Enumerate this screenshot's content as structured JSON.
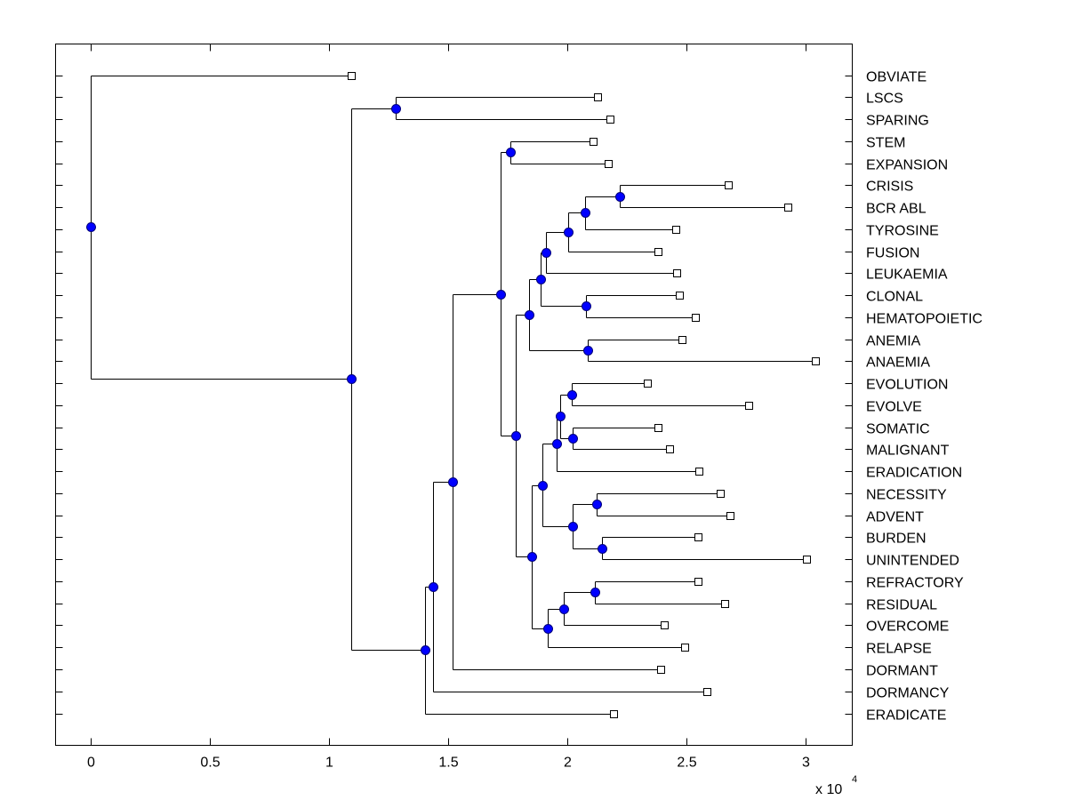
{
  "chart_data": {
    "type": "dendrogram",
    "title": "",
    "xlabel": "",
    "ylabel": "",
    "x_multiplier_label": "x 10",
    "x_multiplier_exponent": "4",
    "xlim": [
      -0.15,
      3.2
    ],
    "xticks": [
      0,
      0.5,
      1,
      1.5,
      2,
      2.5,
      3
    ],
    "xtick_labels": [
      "0",
      "0.5",
      "1",
      "1.5",
      "2",
      "2.5",
      "3"
    ],
    "grid": false,
    "colors": {
      "node": "#0000ff",
      "leaf": "#ffffff",
      "line": "#000000"
    },
    "leaves": [
      {
        "label": "OBVIATE",
        "x": 1.093
      },
      {
        "label": "LSCS",
        "x": 2.127
      },
      {
        "label": "SPARING",
        "x": 2.179
      },
      {
        "label": "STEM",
        "x": 2.108
      },
      {
        "label": "EXPANSION",
        "x": 2.172
      },
      {
        "label": "CRISIS",
        "x": 2.675
      },
      {
        "label": "BCR ABL",
        "x": 2.925
      },
      {
        "label": "TYROSINE",
        "x": 2.455
      },
      {
        "label": "FUSION",
        "x": 2.381
      },
      {
        "label": "LEUKAEMIA",
        "x": 2.459
      },
      {
        "label": "CLONAL",
        "x": 2.47
      },
      {
        "label": "HEMATOPOIETIC",
        "x": 2.537
      },
      {
        "label": "ANEMIA",
        "x": 2.481
      },
      {
        "label": "ANAEMIA",
        "x": 3.041
      },
      {
        "label": "EVOLUTION",
        "x": 2.336
      },
      {
        "label": "EVOLVE",
        "x": 2.761
      },
      {
        "label": "SOMATIC",
        "x": 2.381
      },
      {
        "label": "MALIGNANT",
        "x": 2.429
      },
      {
        "label": "ERADICATION",
        "x": 2.552
      },
      {
        "label": "NECESSITY",
        "x": 2.642
      },
      {
        "label": "ADVENT",
        "x": 2.683
      },
      {
        "label": "BURDEN",
        "x": 2.549
      },
      {
        "label": "UNINTENDED",
        "x": 3.004
      },
      {
        "label": "REFRACTORY",
        "x": 2.549
      },
      {
        "label": "RESIDUAL",
        "x": 2.66
      },
      {
        "label": "OVERCOME",
        "x": 2.407
      },
      {
        "label": "RELAPSE",
        "x": 2.493
      },
      {
        "label": "DORMANT",
        "x": 2.392
      },
      {
        "label": "DORMANCY",
        "x": 2.586
      },
      {
        "label": "ERADICATE",
        "x": 2.194
      }
    ],
    "nodes": {
      "root": {
        "x": 0.0,
        "children": [
          "L0",
          "B"
        ]
      },
      "B": {
        "x": 1.093,
        "children": [
          "C",
          "D"
        ]
      },
      "C": {
        "x": 1.28,
        "children": [
          "L1",
          "L2"
        ]
      },
      "D": {
        "x": 1.403,
        "children": [
          "E",
          "L29"
        ]
      },
      "E": {
        "x": 1.437,
        "children": [
          "F",
          "L28"
        ]
      },
      "F": {
        "x": 1.519,
        "children": [
          "G",
          "L27"
        ]
      },
      "G": {
        "x": 1.72,
        "children": [
          "H",
          "I"
        ]
      },
      "H": {
        "x": 1.761,
        "children": [
          "L3",
          "L4"
        ]
      },
      "I": {
        "x": 1.784,
        "children": [
          "J",
          "R"
        ]
      },
      "J": {
        "x": 1.84,
        "children": [
          "K",
          "Lan"
        ]
      },
      "K": {
        "x": 1.888,
        "children": [
          "M",
          "N"
        ]
      },
      "M": {
        "x": 1.91,
        "children": [
          "O",
          "L9"
        ]
      },
      "O": {
        "x": 2.004,
        "children": [
          "P",
          "L8"
        ]
      },
      "P": {
        "x": 2.075,
        "children": [
          "Q",
          "L7"
        ]
      },
      "Q": {
        "x": 2.22,
        "children": [
          "L5",
          "L6"
        ]
      },
      "N": {
        "x": 2.078,
        "children": [
          "L10",
          "L11"
        ]
      },
      "Lan": {
        "x": 2.086,
        "children": [
          "L12",
          "L13"
        ]
      },
      "R": {
        "x": 1.851,
        "children": [
          "S",
          "T"
        ]
      },
      "S": {
        "x": 1.896,
        "children": [
          "U",
          "V"
        ]
      },
      "U": {
        "x": 1.955,
        "children": [
          "W",
          "L18"
        ]
      },
      "W": {
        "x": 1.97,
        "children": [
          "X",
          "Y"
        ]
      },
      "X": {
        "x": 2.019,
        "children": [
          "L14",
          "L15"
        ]
      },
      "Y": {
        "x": 2.022,
        "children": [
          "L16",
          "L17"
        ]
      },
      "V": {
        "x": 2.022,
        "children": [
          "Z",
          "AA"
        ]
      },
      "Z": {
        "x": 2.123,
        "children": [
          "L19",
          "L20"
        ]
      },
      "AA": {
        "x": 2.146,
        "children": [
          "L21",
          "L22"
        ]
      },
      "T": {
        "x": 1.918,
        "children": [
          "AB",
          "L26"
        ]
      },
      "AB": {
        "x": 1.985,
        "children": [
          "AC",
          "L25"
        ]
      },
      "AC": {
        "x": 2.116,
        "children": [
          "L23",
          "L24"
        ]
      }
    }
  }
}
